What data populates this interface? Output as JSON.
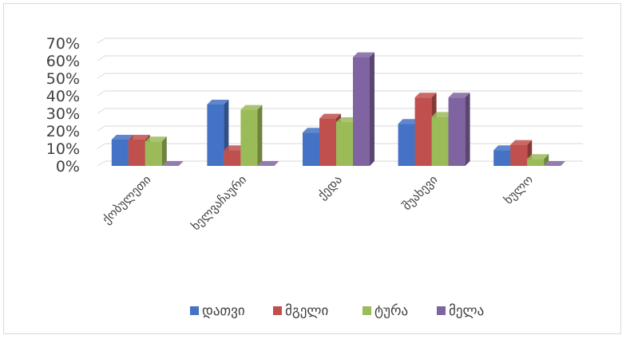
{
  "chart_data": {
    "type": "bar",
    "title": "",
    "xlabel": "",
    "ylabel": "",
    "ylim": [
      0,
      0.7
    ],
    "yticks": [
      "0%",
      "10%",
      "20%",
      "30%",
      "40%",
      "50%",
      "60%",
      "70%"
    ],
    "grid": true,
    "legend_position": "bottom",
    "categories": [
      "ქობულეთი",
      "ხელვაჩაური",
      "ქედა",
      "შუახევი",
      "ხულო"
    ],
    "series": [
      {
        "name": "დათვი",
        "color": "#4472c4",
        "values": [
          0.15,
          0.35,
          0.19,
          0.24,
          0.09
        ]
      },
      {
        "name": "მგელი",
        "color": "#c0504d",
        "values": [
          0.15,
          0.09,
          0.27,
          0.39,
          0.12
        ]
      },
      {
        "name": "ტურა",
        "color": "#9bbb59",
        "values": [
          0.14,
          0.32,
          0.25,
          0.28,
          0.04
        ]
      },
      {
        "name": "მელა",
        "color": "#8064a2",
        "values": [
          0.0,
          0.0,
          0.62,
          0.39,
          0.0
        ]
      }
    ]
  }
}
